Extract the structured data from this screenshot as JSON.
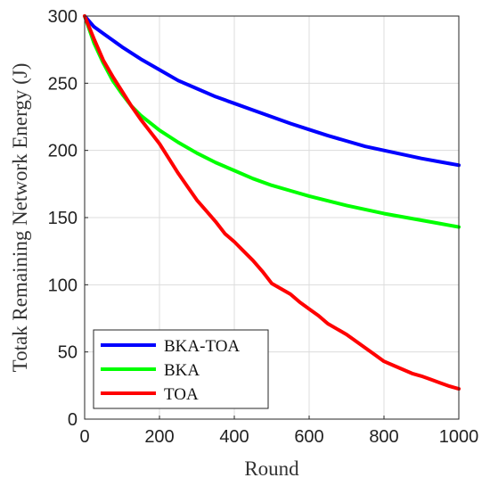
{
  "chart_data": {
    "type": "line",
    "xlabel": "Round",
    "ylabel": "Totak Remaining Network Energy (J)",
    "xlim": [
      0,
      1000
    ],
    "ylim": [
      0,
      300
    ],
    "xticks": [
      0,
      200,
      400,
      600,
      800,
      1000
    ],
    "yticks": [
      0,
      50,
      100,
      150,
      200,
      250,
      300
    ],
    "grid": true,
    "legend_position": "bottom-left",
    "series": [
      {
        "name": "BKA-TOA",
        "color": "#0000ff",
        "x": [
          0,
          25,
          50,
          100,
          150,
          200,
          250,
          300,
          350,
          400,
          450,
          500,
          550,
          600,
          650,
          700,
          750,
          800,
          850,
          900,
          950,
          1000
        ],
        "y": [
          300,
          292,
          287,
          277,
          268,
          260,
          252,
          246,
          240,
          235,
          230,
          225,
          220,
          215.5,
          211,
          207,
          203,
          200,
          197,
          194,
          191.5,
          189
        ]
      },
      {
        "name": "BKA",
        "color": "#00ff00",
        "x": [
          0,
          25,
          50,
          75,
          100,
          125,
          150,
          200,
          250,
          300,
          350,
          400,
          450,
          500,
          550,
          600,
          650,
          700,
          750,
          800,
          850,
          900,
          950,
          1000
        ],
        "y": [
          300,
          280,
          265,
          252,
          242,
          233,
          226,
          215,
          206,
          198,
          191,
          185,
          179,
          174,
          170,
          166,
          162.5,
          159,
          156,
          153,
          150.5,
          148,
          145.5,
          143
        ]
      },
      {
        "name": "TOA",
        "color": "#ff0000",
        "x": [
          0,
          25,
          50,
          75,
          100,
          125,
          150,
          175,
          200,
          225,
          250,
          275,
          300,
          325,
          350,
          375,
          400,
          425,
          450,
          475,
          500,
          525,
          550,
          575,
          600,
          625,
          650,
          675,
          700,
          725,
          750,
          775,
          800,
          825,
          850,
          875,
          900,
          925,
          950,
          975,
          1000
        ],
        "y": [
          300,
          283,
          267,
          255,
          244,
          233,
          223,
          214,
          205,
          194,
          183,
          173,
          163,
          155,
          147,
          138,
          132,
          125,
          118,
          110,
          101,
          97,
          93,
          87,
          82,
          77,
          71,
          67,
          63,
          58,
          53,
          48,
          43,
          40,
          37,
          34,
          32,
          29.5,
          27,
          24.5,
          22.5
        ]
      }
    ]
  }
}
